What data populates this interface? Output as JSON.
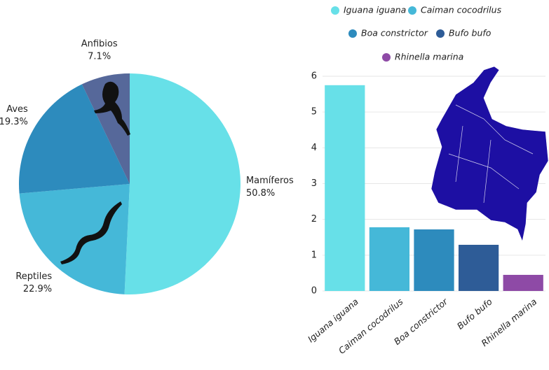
{
  "chart_data": [
    {
      "type": "pie",
      "categories": [
        "Mamíferos",
        "Reptiles",
        "Aves",
        "Anfibios"
      ],
      "values": [
        50.8,
        22.9,
        19.3,
        7.1
      ],
      "value_labels": [
        "50.8%",
        "22.9%",
        "19.3%",
        "7.1%"
      ],
      "colors": [
        "#67e0e8",
        "#45b8d8",
        "#2d8bbd",
        "#56689a"
      ]
    },
    {
      "type": "bar",
      "categories": [
        "Iguana iguana",
        "Caiman cocodrilus",
        "Boa constrictor",
        "Bufo bufo",
        "Rhinella marina"
      ],
      "values": [
        5.75,
        1.78,
        1.72,
        1.29,
        0.45
      ],
      "colors": [
        "#67e0e8",
        "#45b8d8",
        "#2d8bbd",
        "#2e5c97",
        "#8e4aa6"
      ],
      "ylim": [
        0,
        6
      ],
      "yticks": [
        0,
        1,
        2,
        3,
        4,
        5,
        6
      ],
      "grid": true,
      "legend": "top"
    }
  ]
}
